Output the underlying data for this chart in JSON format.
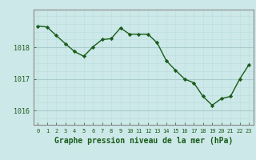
{
  "x": [
    0,
    1,
    2,
    3,
    4,
    5,
    6,
    7,
    8,
    9,
    10,
    11,
    12,
    13,
    14,
    15,
    16,
    17,
    18,
    19,
    20,
    21,
    22,
    23
  ],
  "y": [
    1018.68,
    1018.65,
    1018.38,
    1018.12,
    1017.87,
    1017.72,
    1018.02,
    1018.25,
    1018.28,
    1018.62,
    1018.42,
    1018.42,
    1018.42,
    1018.15,
    1017.58,
    1017.28,
    1017.0,
    1016.88,
    1016.45,
    1016.17,
    1016.38,
    1016.45,
    1017.0,
    1017.45
  ],
  "line_color": "#1a5c1a",
  "marker_color": "#1a5c1a",
  "bg_color": "#cce8e8",
  "grid_major_color": "#aacccc",
  "grid_minor_color": "#bbdddd",
  "xlabel": "Graphe pression niveau de la mer (hPa)",
  "xlabel_color": "#1a5c1a",
  "yticks": [
    1016,
    1017,
    1018
  ],
  "ylim": [
    1015.55,
    1019.2
  ],
  "xlim": [
    -0.5,
    23.5
  ],
  "spine_color": "#888888",
  "tick_label_color": "#1a5c1a",
  "xlabel_fontsize": 7,
  "ytick_fontsize": 6,
  "xtick_fontsize": 5
}
